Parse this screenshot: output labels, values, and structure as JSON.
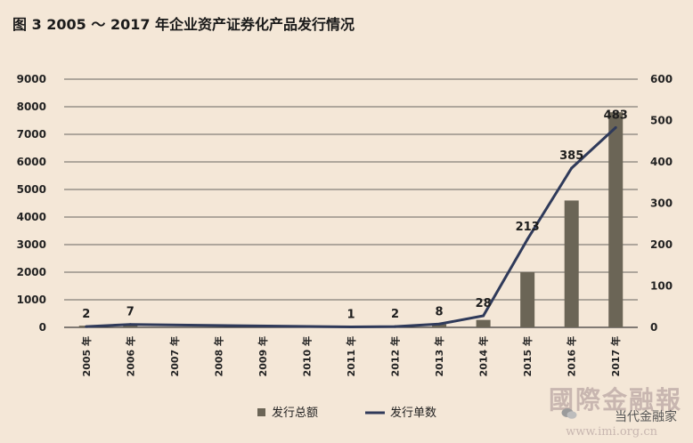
{
  "title": "图 3   2005 ～ 2017 年企业资产证券化产品发行情况",
  "chart_data": {
    "type": "bar",
    "categories": [
      "2005 年",
      "2006 年",
      "2007 年",
      "2008 年",
      "2009 年",
      "2010 年",
      "2011 年",
      "2012 年",
      "2013 年",
      "2014 年",
      "2015 年",
      "2016 年",
      "2017 年"
    ],
    "series": [
      {
        "name": "发行总额",
        "type": "bar",
        "axis": "left",
        "color": "#6b6556",
        "values": [
          60,
          80,
          0,
          0,
          0,
          0,
          10,
          30,
          110,
          270,
          2000,
          4600,
          7800
        ]
      },
      {
        "name": "发行单数",
        "type": "line",
        "axis": "right",
        "color": "#2f3a5a",
        "values": [
          2,
          7,
          null,
          null,
          null,
          null,
          1,
          2,
          8,
          28,
          213,
          385,
          483
        ],
        "labels": [
          "2",
          "7",
          "",
          "",
          "",
          "",
          "1",
          "2",
          "8",
          "28",
          "213",
          "385",
          "483"
        ]
      }
    ],
    "y_left": {
      "range": [
        0,
        9000
      ],
      "ticks": [
        "0",
        "1000",
        "2000",
        "3000",
        "4000",
        "5000",
        "6000",
        "7000",
        "8000",
        "9000"
      ]
    },
    "y_right": {
      "range": [
        0,
        600
      ],
      "ticks": [
        "0",
        "100",
        "200",
        "300",
        "400",
        "500",
        "600"
      ]
    },
    "grid": true,
    "legend": "bottom"
  },
  "watermark": {
    "logo": "國際金融報",
    "brand": "当代金融家",
    "url": "www.imi.org.cn"
  }
}
